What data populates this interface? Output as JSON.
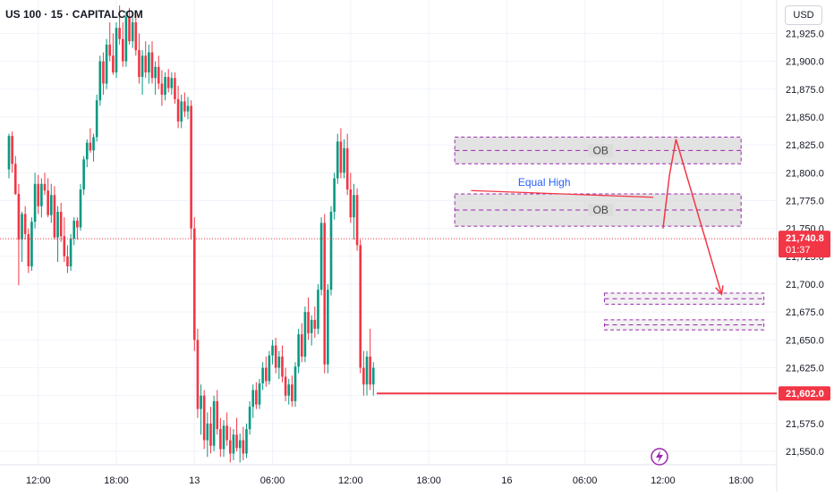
{
  "header": {
    "title": "US 100 · 15 · CAPITALCOM",
    "currency": "USD"
  },
  "colors": {
    "up": "#089981",
    "down": "#f23645",
    "grid": "#f0f3fa",
    "axis_text": "#131722",
    "zone_fill": "#d9d9d9",
    "zone_border": "#9c27b0",
    "annotation_line": "#f23645",
    "label_blue": "#2962ff"
  },
  "chart_data": {
    "type": "candlestick",
    "ylim": [
      21538,
      21955
    ],
    "y_ticks": [
      21550,
      21575,
      21600,
      21625,
      21650,
      21675,
      21700,
      21725,
      21750,
      21775,
      21800,
      21825,
      21850,
      21875,
      21900,
      21925
    ],
    "y_tick_labels": [
      "21,550.0",
      "21,575.0",
      "21,600.0",
      "21,625.0",
      "21,650.0",
      "21,675.0",
      "21,700.0",
      "21,725.0",
      "21,750.0",
      "21,775.0",
      "21,800.0",
      "21,825.0",
      "21,850.0",
      "21,875.0",
      "21,900.0",
      "21,925.0"
    ],
    "x_ticks": [
      {
        "label": "12:00",
        "idx": 9
      },
      {
        "label": "18:00",
        "idx": 33
      },
      {
        "label": "13",
        "idx": 57
      },
      {
        "label": "06:00",
        "idx": 81
      },
      {
        "label": "12:00",
        "idx": 105
      },
      {
        "label": "18:00",
        "idx": 129
      },
      {
        "label": "16",
        "idx": 153
      },
      {
        "label": "06:00",
        "idx": 177
      },
      {
        "label": "12:00",
        "idx": 201
      },
      {
        "label": "18:00",
        "idx": 225
      }
    ],
    "price_markers": [
      {
        "price": "21,740.8",
        "sub": "01:37",
        "value": 21740.8
      },
      {
        "price": "21,602.0",
        "value": 21602
      }
    ],
    "zones": [
      {
        "label": "OB",
        "x0": 137,
        "x1": 225,
        "y0": 21808,
        "y1": 21832
      },
      {
        "label": "OB",
        "x0": 137,
        "x1": 225,
        "y0": 21752,
        "y1": 21781
      },
      {
        "label": "",
        "x0": 183,
        "x1": 232,
        "y0": 21682,
        "y1": 21692
      },
      {
        "label": "",
        "x0": 183,
        "x1": 232,
        "y0": 21659,
        "y1": 21668
      }
    ],
    "annotations": {
      "equal_high_label": "Equal High",
      "equal_high_line": {
        "x0": 142,
        "y0": 21784,
        "x1": 198,
        "y1": 21778
      },
      "support_line": {
        "x0": 113,
        "value": 21602
      },
      "current_price_value": 21740.8,
      "projection": [
        {
          "x": 201,
          "y": 21750
        },
        {
          "x": 203,
          "y": 21798
        },
        {
          "x": 205,
          "y": 21830
        },
        {
          "x": 219,
          "y": 21691
        }
      ]
    },
    "ohlc": [
      [
        21803,
        21835,
        21795,
        21833
      ],
      [
        21833,
        21837,
        21800,
        21808
      ],
      [
        21808,
        21815,
        21780,
        21781
      ],
      [
        21781,
        21790,
        21699,
        21740
      ],
      [
        21740,
        21765,
        21720,
        21763
      ],
      [
        21763,
        21770,
        21740,
        21745
      ],
      [
        21745,
        21750,
        21710,
        21716
      ],
      [
        21716,
        21760,
        21712,
        21756
      ],
      [
        21756,
        21800,
        21750,
        21790
      ],
      [
        21790,
        21798,
        21763,
        21770
      ],
      [
        21770,
        21795,
        21760,
        21790
      ],
      [
        21790,
        21800,
        21780,
        21784
      ],
      [
        21784,
        21795,
        21760,
        21762
      ],
      [
        21762,
        21790,
        21755,
        21780
      ],
      [
        21780,
        21788,
        21740,
        21742
      ],
      [
        21742,
        21770,
        21720,
        21765
      ],
      [
        21765,
        21773,
        21738,
        21743
      ],
      [
        21743,
        21760,
        21720,
        21725
      ],
      [
        21725,
        21735,
        21710,
        21716
      ],
      [
        21716,
        21745,
        21712,
        21741
      ],
      [
        21741,
        21760,
        21735,
        21757
      ],
      [
        21757,
        21760,
        21740,
        21751
      ],
      [
        21751,
        21790,
        21748,
        21785
      ],
      [
        21785,
        21815,
        21780,
        21812
      ],
      [
        21812,
        21830,
        21805,
        21827
      ],
      [
        21827,
        21840,
        21818,
        21820
      ],
      [
        21820,
        21835,
        21810,
        21832
      ],
      [
        21832,
        21870,
        21828,
        21865
      ],
      [
        21865,
        21905,
        21860,
        21900
      ],
      [
        21900,
        21908,
        21870,
        21880
      ],
      [
        21880,
        21920,
        21875,
        21915
      ],
      [
        21915,
        21935,
        21900,
        21905
      ],
      [
        21905,
        21925,
        21888,
        21890
      ],
      [
        21890,
        21935,
        21885,
        21930
      ],
      [
        21930,
        21950,
        21915,
        21920
      ],
      [
        21920,
        21935,
        21895,
        21900
      ],
      [
        21900,
        21945,
        21895,
        21940
      ],
      [
        21940,
        21948,
        21915,
        21918
      ],
      [
        21918,
        21940,
        21912,
        21935
      ],
      [
        21935,
        21942,
        21905,
        21910
      ],
      [
        21910,
        21925,
        21880,
        21886
      ],
      [
        21886,
        21910,
        21870,
        21905
      ],
      [
        21905,
        21918,
        21885,
        21890
      ],
      [
        21890,
        21915,
        21880,
        21908
      ],
      [
        21908,
        21918,
        21880,
        21885
      ],
      [
        21885,
        21900,
        21870,
        21895
      ],
      [
        21895,
        21905,
        21875,
        21880
      ],
      [
        21880,
        21892,
        21860,
        21870
      ],
      [
        21870,
        21890,
        21865,
        21886
      ],
      [
        21886,
        21893,
        21872,
        21876
      ],
      [
        21876,
        21890,
        21870,
        21885
      ],
      [
        21885,
        21890,
        21862,
        21866
      ],
      [
        21866,
        21878,
        21840,
        21846
      ],
      [
        21846,
        21870,
        21840,
        21864
      ],
      [
        21864,
        21872,
        21850,
        21855
      ],
      [
        21855,
        21868,
        21848,
        21860
      ],
      [
        21860,
        21865,
        21740,
        21750
      ],
      [
        21750,
        21760,
        21640,
        21650
      ],
      [
        21650,
        21660,
        21580,
        21588
      ],
      [
        21588,
        21610,
        21565,
        21600
      ],
      [
        21600,
        21605,
        21552,
        21560
      ],
      [
        21560,
        21585,
        21545,
        21575
      ],
      [
        21575,
        21590,
        21548,
        21555
      ],
      [
        21555,
        21600,
        21550,
        21595
      ],
      [
        21595,
        21605,
        21565,
        21570
      ],
      [
        21570,
        21580,
        21545,
        21552
      ],
      [
        21552,
        21578,
        21545,
        21573
      ],
      [
        21573,
        21585,
        21555,
        21560
      ],
      [
        21560,
        21572,
        21540,
        21548
      ],
      [
        21548,
        21570,
        21542,
        21565
      ],
      [
        21565,
        21580,
        21550,
        21553
      ],
      [
        21553,
        21566,
        21540,
        21560
      ],
      [
        21560,
        21572,
        21542,
        21548
      ],
      [
        21548,
        21575,
        21544,
        21570
      ],
      [
        21570,
        21595,
        21565,
        21590
      ],
      [
        21590,
        21610,
        21580,
        21605
      ],
      [
        21605,
        21612,
        21588,
        21592
      ],
      [
        21592,
        21615,
        21588,
        21611
      ],
      [
        21611,
        21630,
        21605,
        21625
      ],
      [
        21625,
        21635,
        21608,
        21613
      ],
      [
        21613,
        21640,
        21610,
        21636
      ],
      [
        21636,
        21650,
        21628,
        21645
      ],
      [
        21645,
        21652,
        21620,
        21625
      ],
      [
        21625,
        21640,
        21615,
        21635
      ],
      [
        21635,
        21645,
        21612,
        21617
      ],
      [
        21617,
        21625,
        21595,
        21600
      ],
      [
        21600,
        21615,
        21592,
        21610
      ],
      [
        21610,
        21618,
        21590,
        21595
      ],
      [
        21595,
        21630,
        21590,
        21626
      ],
      [
        21626,
        21660,
        21620,
        21655
      ],
      [
        21655,
        21665,
        21630,
        21635
      ],
      [
        21635,
        21680,
        21630,
        21675
      ],
      [
        21675,
        21688,
        21650,
        21656
      ],
      [
        21656,
        21672,
        21645,
        21668
      ],
      [
        21668,
        21680,
        21652,
        21660
      ],
      [
        21660,
        21700,
        21655,
        21695
      ],
      [
        21695,
        21760,
        21690,
        21755
      ],
      [
        21755,
        21763,
        21620,
        21628
      ],
      [
        21628,
        21700,
        21620,
        21695
      ],
      [
        21695,
        21770,
        21690,
        21765
      ],
      [
        21765,
        21800,
        21758,
        21795
      ],
      [
        21795,
        21835,
        21790,
        21828
      ],
      [
        21828,
        21840,
        21795,
        21800
      ],
      [
        21800,
        21830,
        21795,
        21822
      ],
      [
        21822,
        21835,
        21780,
        21785
      ],
      [
        21785,
        21800,
        21755,
        21760
      ],
      [
        21760,
        21790,
        21740,
        21780
      ],
      [
        21780,
        21786,
        21730,
        21735
      ],
      [
        21735,
        21740,
        21620,
        21625
      ],
      [
        21625,
        21640,
        21600,
        21610
      ],
      [
        21610,
        21640,
        21600,
        21635
      ],
      [
        21635,
        21660,
        21605,
        21610
      ],
      [
        21610,
        21630,
        21600,
        21625
      ]
    ]
  }
}
